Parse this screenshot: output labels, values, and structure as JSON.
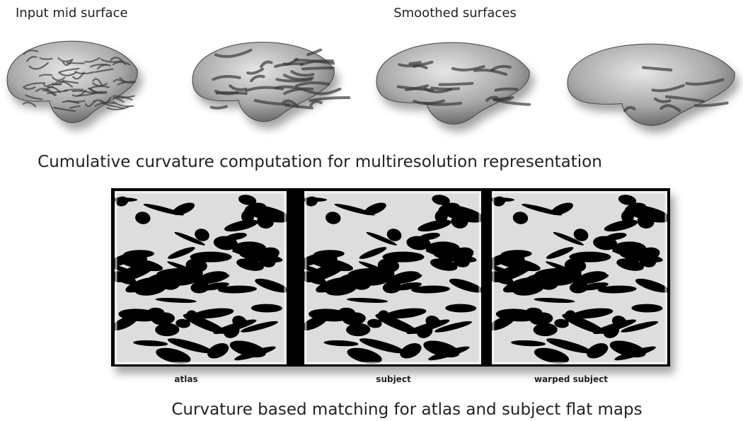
{
  "top": {
    "input_label": "Input mid surface",
    "smoothed_label": "Smoothed surfaces",
    "caption": "Cumulative curvature computation for multiresolution representation"
  },
  "bottom": {
    "panels": [
      "atlas",
      "subject",
      "warped subject"
    ],
    "caption": "Curvature based matching for atlas and subject flat maps"
  }
}
